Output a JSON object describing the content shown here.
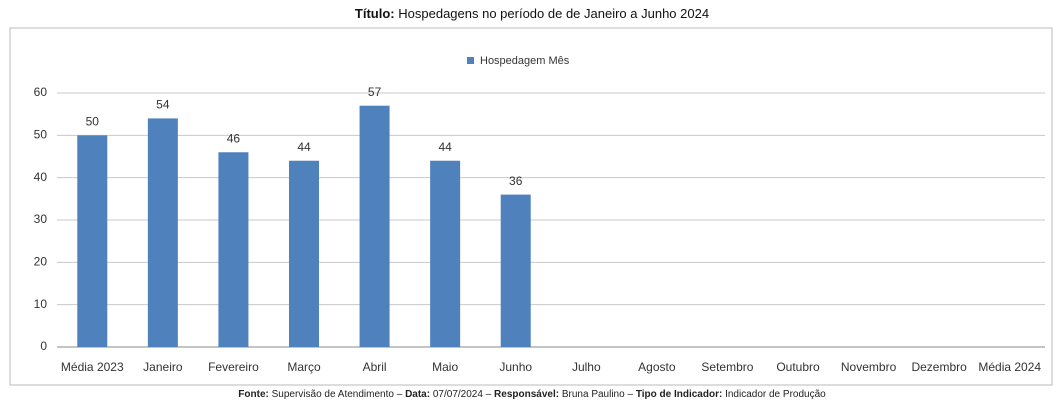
{
  "header": {
    "title_label": "Título:",
    "title": "Hospedagens no período de de Janeiro a Junho 2024"
  },
  "chart_data": {
    "type": "bar",
    "categories": [
      "Média 2023",
      "Janeiro",
      "Fevereiro",
      "Março",
      "Abril",
      "Maio",
      "Junho",
      "Julho",
      "Agosto",
      "Setembro",
      "Outubro",
      "Novembro",
      "Dezembro",
      "Média 2024"
    ],
    "series": [
      {
        "name": "Hospedagem Mês",
        "color": "#4f81bd",
        "values": [
          50,
          54,
          46,
          44,
          57,
          44,
          36,
          null,
          null,
          null,
          null,
          null,
          null,
          null
        ]
      }
    ],
    "ylim": [
      0,
      60
    ],
    "yticks": [
      0,
      10,
      20,
      30,
      40,
      50,
      60
    ],
    "grid": true,
    "legend": "top"
  },
  "footer": {
    "separator": "–",
    "items": [
      {
        "label": "Fonte:",
        "value": "Supervisão de Atendimento"
      },
      {
        "label": "Data:",
        "value": "07/07/2024"
      },
      {
        "label": "Responsável:",
        "value": "Bruna Paulino"
      },
      {
        "label": "Tipo de Indicador:",
        "value": "Indicador de Produção"
      }
    ]
  }
}
